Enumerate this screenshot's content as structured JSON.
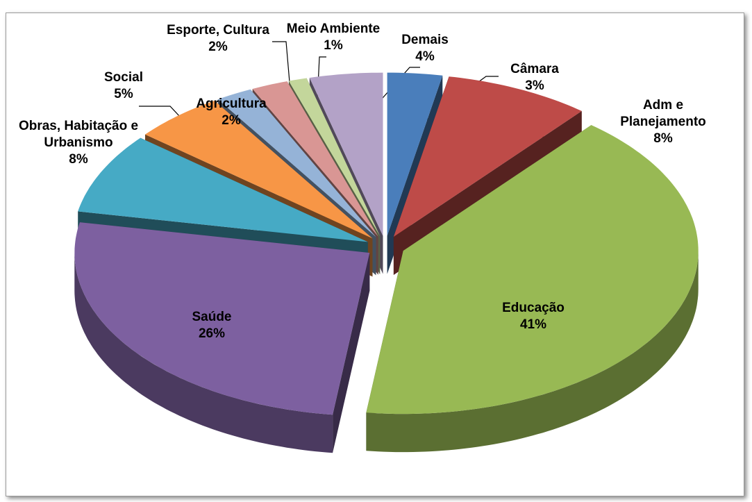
{
  "chart_data": {
    "type": "pie3d",
    "categories": [
      "Câmara",
      "Adm e Planejamento",
      "Educação",
      "Saúde",
      "Obras, Habitação e Urbanismo",
      "Social",
      "Agricultura",
      "Esporte, Cultura",
      "Meio Ambiente",
      "Demais"
    ],
    "values": [
      3,
      8,
      41,
      26,
      8,
      5,
      2,
      2,
      1,
      4
    ],
    "value_labels": [
      "3%",
      "8%",
      "41%",
      "26%",
      "8%",
      "5%",
      "2%",
      "2%",
      "1%",
      "4%"
    ],
    "colors": [
      "#4a7ebb",
      "#be4b48",
      "#98b954",
      "#7d60a0",
      "#46aac5",
      "#f79646",
      "#95b3d7",
      "#d99694",
      "#c3d69b",
      "#b3a2c7"
    ]
  }
}
